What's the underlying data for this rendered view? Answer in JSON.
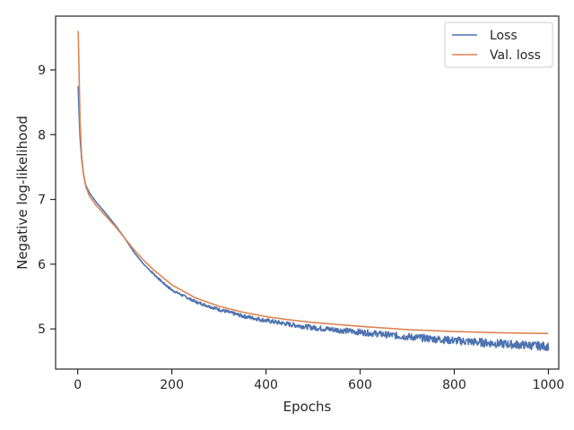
{
  "chart_data": {
    "type": "line",
    "title": "",
    "xlabel": "Epochs",
    "ylabel": "Negative log-likelihood",
    "xlim": [
      -47,
      1022
    ],
    "ylim": [
      4.38,
      9.83
    ],
    "xticks": [
      0,
      200,
      400,
      600,
      800,
      1000
    ],
    "yticks": [
      5,
      6,
      7,
      8,
      9
    ],
    "grid": false,
    "legend_position": "top-right",
    "x": [
      1,
      3,
      5,
      8,
      12,
      17,
      25,
      40,
      60,
      80,
      100,
      120,
      140,
      160,
      180,
      200,
      250,
      300,
      350,
      400,
      450,
      500,
      600,
      700,
      800,
      900,
      1000
    ],
    "series": [
      {
        "name": "Loss",
        "color": "#4c72b0",
        "noise": true,
        "values": [
          8.75,
          8.3,
          7.95,
          7.65,
          7.4,
          7.22,
          7.1,
          6.95,
          6.78,
          6.6,
          6.4,
          6.18,
          6.0,
          5.86,
          5.72,
          5.6,
          5.42,
          5.3,
          5.2,
          5.13,
          5.07,
          5.02,
          4.95,
          4.88,
          4.82,
          4.77,
          4.73
        ]
      },
      {
        "name": "Val. loss",
        "color": "#dd8452",
        "noise": false,
        "values": [
          9.6,
          8.9,
          8.2,
          7.7,
          7.4,
          7.2,
          7.05,
          6.9,
          6.74,
          6.58,
          6.4,
          6.22,
          6.06,
          5.92,
          5.8,
          5.68,
          5.48,
          5.35,
          5.26,
          5.19,
          5.14,
          5.1,
          5.04,
          4.99,
          4.96,
          4.94,
          4.93
        ]
      }
    ]
  }
}
